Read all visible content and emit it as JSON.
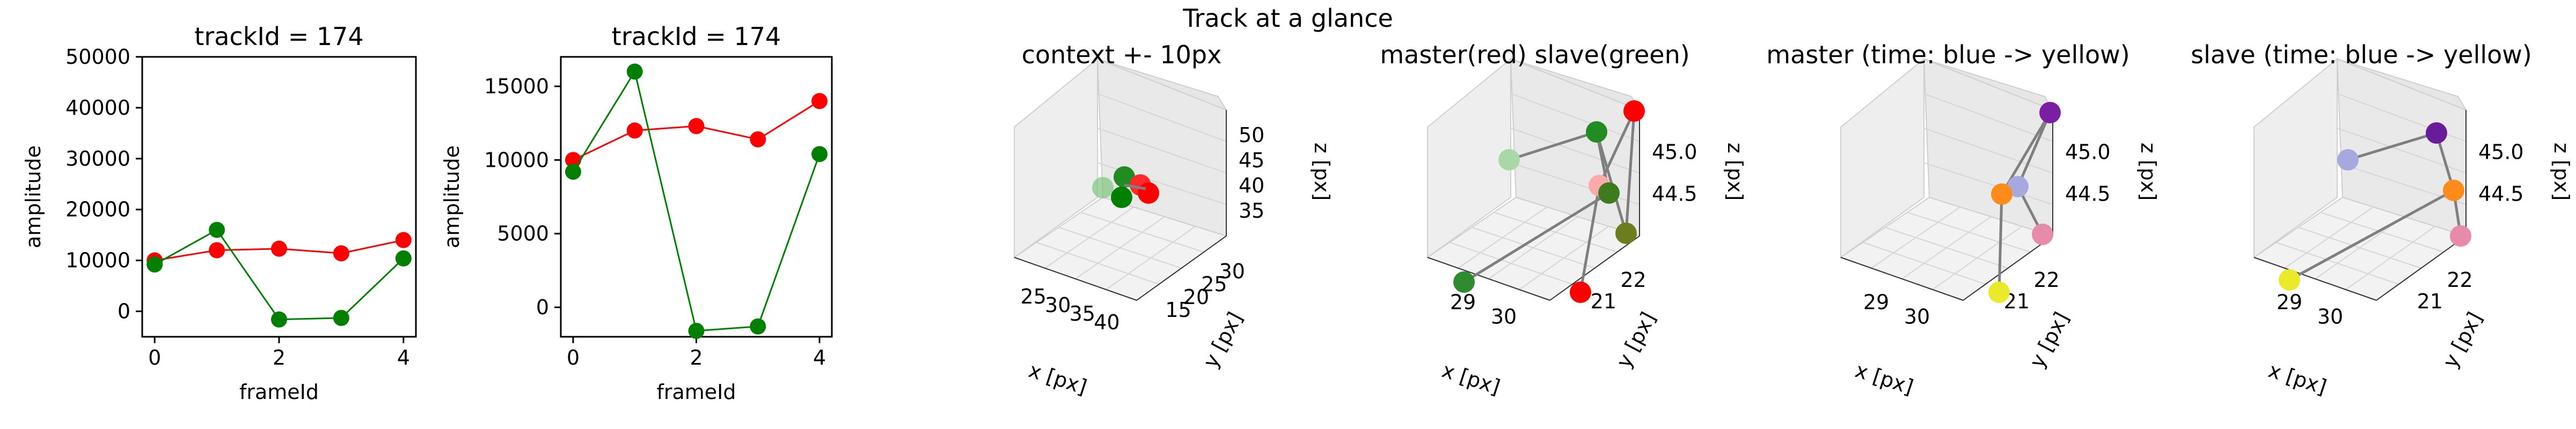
{
  "figure": {
    "suptitle": "Track at a glance"
  },
  "chart_data": [
    {
      "type": "line",
      "title": "trackId = 174",
      "xlabel": "frameId",
      "ylabel": "amplitude",
      "xlim": [
        -0.2,
        4.2
      ],
      "ylim": [
        -5000,
        50000
      ],
      "xticks": [
        0,
        2,
        4
      ],
      "yticks": [
        0,
        10000,
        20000,
        30000,
        40000,
        50000
      ],
      "x": [
        0,
        1,
        2,
        3,
        4
      ],
      "series": [
        {
          "color": "#ff0000",
          "values": [
            10000,
            12000,
            12300,
            11400,
            14000
          ]
        },
        {
          "color": "#008000",
          "values": [
            9200,
            16000,
            -1600,
            -1300,
            10400
          ]
        }
      ]
    },
    {
      "type": "line",
      "title": "trackId = 174",
      "xlabel": "frameId",
      "ylabel": "amplitude",
      "xlim": [
        -0.2,
        4.2
      ],
      "ylim": [
        -2000,
        17000
      ],
      "xticks": [
        0,
        2,
        4
      ],
      "yticks": [
        0,
        5000,
        10000,
        15000
      ],
      "x": [
        0,
        1,
        2,
        3,
        4
      ],
      "series": [
        {
          "color": "#ff0000",
          "values": [
            10000,
            12000,
            12300,
            11400,
            14000
          ]
        },
        {
          "color": "#008000",
          "values": [
            9200,
            16000,
            -1600,
            -1300,
            10400
          ]
        }
      ]
    },
    {
      "type": "scatter",
      "title": "context +- 10px",
      "xlabel": "x [px]",
      "ylabel": "y [px]",
      "zlabel": "z [px]",
      "xticks": [
        "25",
        "30",
        "35",
        "40"
      ],
      "yticks": [
        "15",
        "20",
        "25",
        "30"
      ],
      "zticks": [
        "35",
        "40",
        "45",
        "50"
      ]
    },
    {
      "type": "scatter",
      "title": "master(red) slave(green)",
      "xlabel": "x [px]",
      "ylabel": "y [px]",
      "zlabel": "z [px]",
      "xticks": [
        "29",
        "30"
      ],
      "yticks": [
        "21",
        "22"
      ],
      "zticks": [
        "44.5",
        "45.0"
      ]
    },
    {
      "type": "scatter",
      "title": "master (time: blue -> yellow)",
      "xlabel": "x [px]",
      "ylabel": "y [px]",
      "zlabel": "z [px]",
      "xticks": [
        "29",
        "30"
      ],
      "yticks": [
        "21",
        "22"
      ],
      "zticks": [
        "44.5",
        "45.0"
      ]
    },
    {
      "type": "scatter",
      "title": "slave (time: blue -> yellow)",
      "xlabel": "x [px]",
      "ylabel": "y [px]",
      "zlabel": "z [px]",
      "xticks": [
        "29",
        "30"
      ],
      "yticks": [
        "21",
        "22"
      ],
      "zticks": [
        "44.5",
        "45.0"
      ]
    }
  ]
}
